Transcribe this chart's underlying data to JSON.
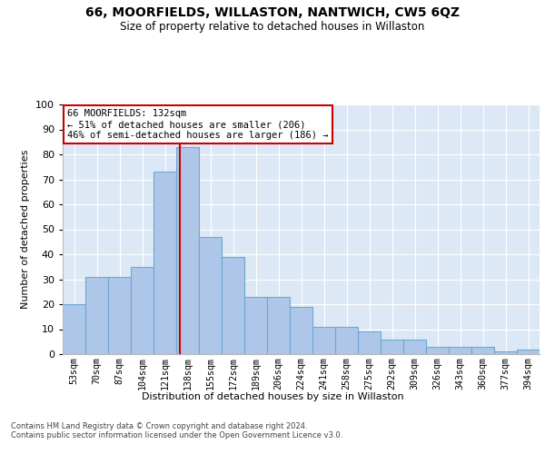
{
  "title": "66, MOORFIELDS, WILLASTON, NANTWICH, CW5 6QZ",
  "subtitle": "Size of property relative to detached houses in Willaston",
  "xlabel": "Distribution of detached houses by size in Willaston",
  "ylabel": "Number of detached properties",
  "bar_labels": [
    "53sqm",
    "70sqm",
    "87sqm",
    "104sqm",
    "121sqm",
    "138sqm",
    "155sqm",
    "172sqm",
    "189sqm",
    "206sqm",
    "224sqm",
    "241sqm",
    "258sqm",
    "275sqm",
    "292sqm",
    "309sqm",
    "326sqm",
    "343sqm",
    "360sqm",
    "377sqm",
    "394sqm"
  ],
  "bar_vals": [
    20,
    31,
    31,
    35,
    73,
    83,
    47,
    39,
    23,
    23,
    19,
    11,
    11,
    9,
    6,
    6,
    3,
    3,
    3,
    1,
    2
  ],
  "bar_color": "#aec6e8",
  "bar_edge_color": "#6aaad4",
  "vline_color": "#cc0000",
  "annotation_text": "66 MOORFIELDS: 132sqm\n← 51% of detached houses are smaller (206)\n46% of semi-detached houses are larger (186) →",
  "annotation_box_color": "white",
  "annotation_box_edge_color": "#cc0000",
  "ylim": [
    0,
    100
  ],
  "yticks": [
    0,
    10,
    20,
    30,
    40,
    50,
    60,
    70,
    80,
    90,
    100
  ],
  "background_color": "#dce8f5",
  "footer": "Contains HM Land Registry data © Crown copyright and database right 2024.\nContains public sector information licensed under the Open Government Licence v3.0.",
  "fig_bg_color": "#ffffff",
  "title_fontsize": 10,
  "subtitle_fontsize": 8.5,
  "ylabel_fontsize": 8,
  "xlabel_fontsize": 8,
  "footer_fontsize": 6,
  "vline_x_index": 4.647
}
